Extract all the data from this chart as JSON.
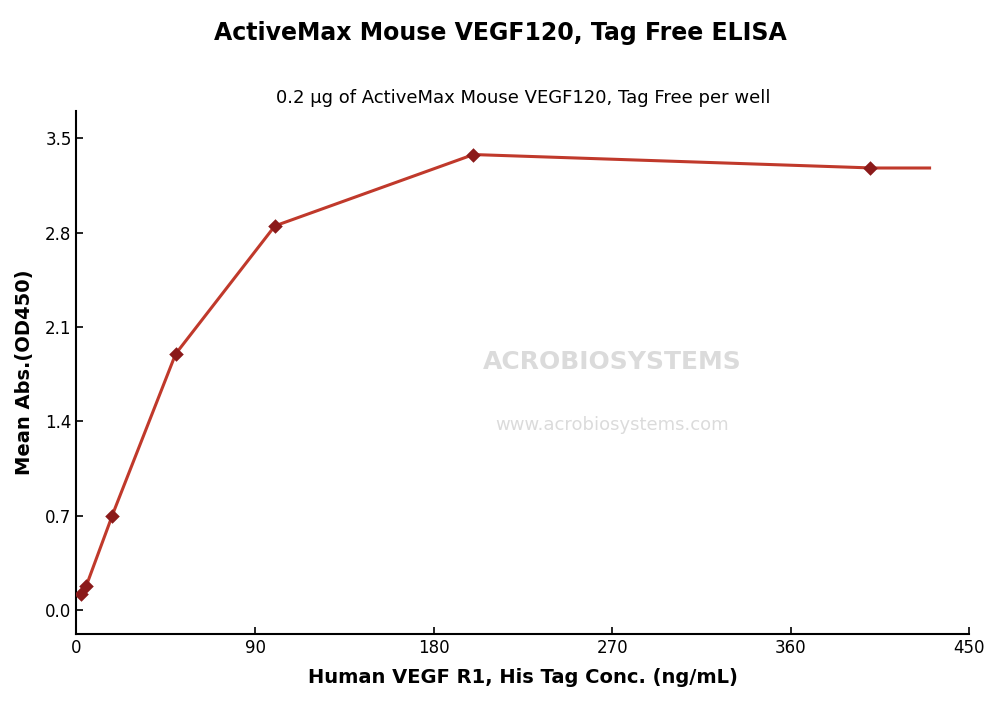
{
  "title": "ActiveMax Mouse VEGF120, Tag Free ELISA",
  "subtitle": "0.2 μg of ActiveMax Mouse VEGF120, Tag Free per well",
  "xlabel": "Human VEGF R1, His Tag Conc. (ng/mL)",
  "ylabel": "Mean Abs.(OD450)",
  "data_x": [
    2.5,
    5.0,
    18.0,
    50.0,
    100.0,
    200.0,
    400.0
  ],
  "data_y": [
    0.12,
    0.18,
    0.7,
    1.9,
    2.85,
    3.38,
    3.28
  ],
  "xlim": [
    0,
    450
  ],
  "ylim": [
    -0.18,
    3.7
  ],
  "xticks": [
    0,
    90,
    180,
    270,
    360,
    450
  ],
  "yticks": [
    0.0,
    0.7,
    1.4,
    2.1,
    2.8,
    3.5
  ],
  "line_color": "#c0392b",
  "marker_color": "#8b1a1a",
  "bg_color": "#ffffff",
  "title_fontsize": 17,
  "subtitle_fontsize": 13,
  "label_fontsize": 14,
  "tick_fontsize": 12,
  "watermark1": "ACROBIOSYSTEMS",
  "watermark2": "www.acrobiosystems.com"
}
